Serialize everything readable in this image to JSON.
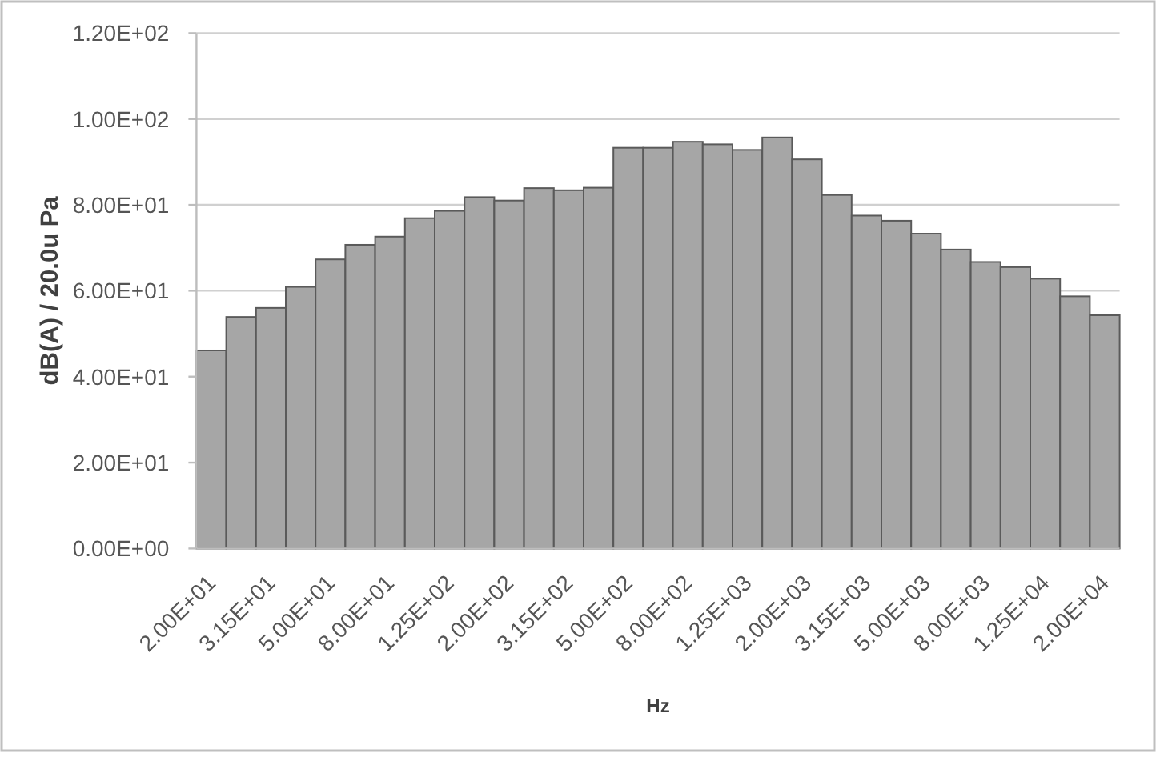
{
  "chart_data": {
    "type": "bar",
    "xlabel": "Hz",
    "ylabel": "dB(A) / 20.0u Pa",
    "categories": [
      "2.00E+01",
      null,
      "3.15E+01",
      null,
      "5.00E+01",
      null,
      "8.00E+01",
      null,
      "1.25E+02",
      null,
      "2.00E+02",
      null,
      "3.15E+02",
      null,
      "5.00E+02",
      null,
      "8.00E+02",
      null,
      "1.25E+03",
      null,
      "2.00E+03",
      null,
      "3.15E+03",
      null,
      "5.00E+03",
      null,
      "8.00E+03",
      null,
      "1.25E+04",
      null,
      "2.00E+04"
    ],
    "values": [
      46.1,
      53.9,
      56.0,
      60.9,
      67.3,
      70.7,
      72.6,
      76.9,
      78.6,
      81.8,
      81.0,
      83.9,
      83.4,
      84.0,
      93.3,
      93.3,
      94.7,
      94.1,
      92.8,
      95.7,
      90.6,
      82.3,
      77.5,
      76.3,
      73.3,
      69.6,
      66.7,
      65.5,
      62.8,
      58.7,
      54.3
    ],
    "color": "#a6a6a6",
    "ylim": [
      0,
      120
    ],
    "yticks": [
      {
        "value": 0,
        "label": "0.00E+00"
      },
      {
        "value": 20,
        "label": "2.00E+01"
      },
      {
        "value": 40,
        "label": "4.00E+01"
      },
      {
        "value": 60,
        "label": "6.00E+01"
      },
      {
        "value": 80,
        "label": "8.00E+01"
      },
      {
        "value": 100,
        "label": "1.00E+02"
      },
      {
        "value": 120,
        "label": "1.20E+02"
      }
    ],
    "grid": "y"
  }
}
